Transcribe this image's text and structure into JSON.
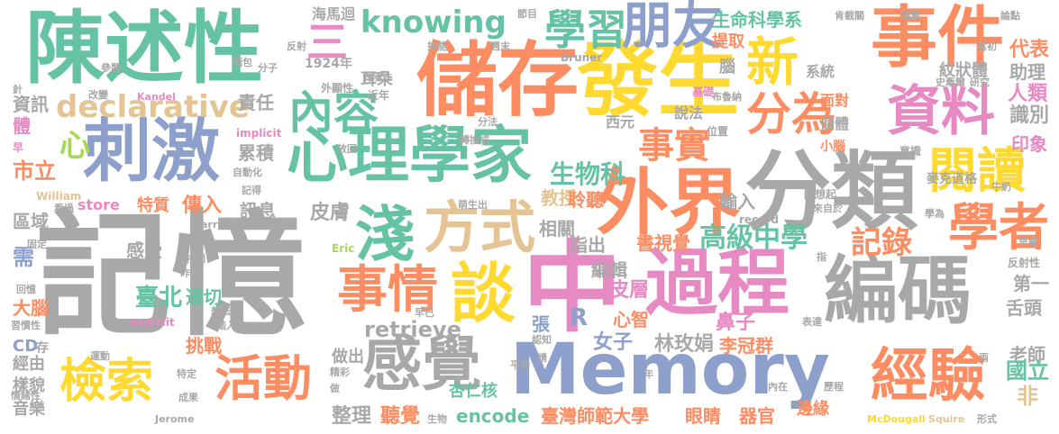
{
  "palette": {
    "gray": "#a8a8a8",
    "green": "#66c2a5",
    "orange": "#fc8d62",
    "blue": "#8da0cb",
    "pink": "#e78ac3",
    "lime": "#a6d854",
    "yellow": "#ffd92f",
    "tan": "#e5c494"
  },
  "words": [
    {
      "id": "jiyi",
      "text": "記憶",
      "color": "gray"
    },
    {
      "id": "chenshuxing",
      "text": "陳述性",
      "color": "green"
    },
    {
      "id": "chucun",
      "text": "儲存",
      "color": "orange"
    },
    {
      "id": "fasheng",
      "text": "發生",
      "color": "yellow"
    },
    {
      "id": "shijian",
      "text": "事件",
      "color": "orange"
    },
    {
      "id": "fenlei",
      "text": "分類",
      "color": "gray"
    },
    {
      "id": "memory",
      "text": "Memory",
      "color": "blue"
    },
    {
      "id": "zhong",
      "text": "中",
      "color": "pink"
    },
    {
      "id": "guocheng",
      "text": "過程",
      "color": "pink"
    },
    {
      "id": "bianma",
      "text": "編碼",
      "color": "gray"
    },
    {
      "id": "ciji",
      "text": "刺激",
      "color": "blue"
    },
    {
      "id": "xinlixuejia",
      "text": "心理學家",
      "color": "green"
    },
    {
      "id": "waijie",
      "text": "外界",
      "color": "orange"
    },
    {
      "id": "ziliao",
      "text": "資料",
      "color": "pink"
    },
    {
      "id": "yuedu",
      "text": "閱讀",
      "color": "yellow"
    },
    {
      "id": "xuezhe",
      "text": "學者",
      "color": "orange"
    },
    {
      "id": "jingyan",
      "text": "經驗",
      "color": "orange"
    },
    {
      "id": "ganjue",
      "text": "感覺",
      "color": "gray"
    },
    {
      "id": "jiansuo",
      "text": "檢索",
      "color": "yellow"
    },
    {
      "id": "huodong",
      "text": "活動",
      "color": "orange"
    },
    {
      "id": "qian",
      "text": "淺",
      "color": "green"
    },
    {
      "id": "fangshi",
      "text": "方式",
      "color": "tan"
    },
    {
      "id": "shiqing",
      "text": "事情",
      "color": "orange"
    },
    {
      "id": "tan",
      "text": "談",
      "color": "yellow"
    },
    {
      "id": "neirong",
      "text": "內容",
      "color": "green"
    },
    {
      "id": "declarative",
      "text": "declarative",
      "color": "tan"
    },
    {
      "id": "knowing",
      "text": "knowing",
      "color": "green"
    },
    {
      "id": "xuexi",
      "text": "學習",
      "color": "green"
    },
    {
      "id": "pengyou",
      "text": "朋友",
      "color": "blue"
    },
    {
      "id": "xin",
      "text": "新",
      "color": "yellow"
    },
    {
      "id": "fenwei",
      "text": "分為",
      "color": "orange"
    },
    {
      "id": "shishi",
      "text": "事實",
      "color": "orange"
    },
    {
      "id": "san",
      "text": "三",
      "color": "pink"
    },
    {
      "id": "xin2",
      "text": "心",
      "color": "lime"
    },
    {
      "id": "shengwuke",
      "text": "生物科",
      "color": "green"
    },
    {
      "id": "gaojizhongxue",
      "text": "高級中學",
      "color": "green"
    },
    {
      "id": "jilu",
      "text": "記錄",
      "color": "orange"
    },
    {
      "id": "shengmingkexuexi",
      "text": "生命科學系",
      "color": "green"
    },
    {
      "id": "taibei",
      "text": "臺北",
      "color": "green"
    },
    {
      "id": "shimingda",
      "text": "臺灣師範大學",
      "color": "orange"
    },
    {
      "id": "encode",
      "text": "encode",
      "color": "green"
    },
    {
      "id": "retrieve",
      "text": "retrieve",
      "color": "gray"
    },
    {
      "id": "store",
      "text": "store",
      "color": "pink"
    },
    {
      "id": "linmeijuan",
      "text": "林玫娟",
      "color": "gray"
    },
    {
      "id": "liguanqun",
      "text": "李冠群",
      "color": "orange"
    },
    {
      "id": "laoshi",
      "text": "老師",
      "color": "gray"
    },
    {
      "id": "guoli",
      "text": "國立",
      "color": "green"
    },
    {
      "id": "fei",
      "text": "非",
      "color": "tan"
    },
    {
      "id": "shetou",
      "text": "舌頭",
      "color": "gray"
    },
    {
      "id": "diyi",
      "text": "第一",
      "color": "gray"
    },
    {
      "id": "yinxiang",
      "text": "印象",
      "color": "pink"
    },
    {
      "id": "renlei",
      "text": "人類",
      "color": "pink"
    },
    {
      "id": "shibie",
      "text": "識別",
      "color": "gray"
    },
    {
      "id": "daibiao",
      "text": "代表",
      "color": "orange"
    },
    {
      "id": "zhuli",
      "text": "助理",
      "color": "gray"
    },
    {
      "id": "wenzhuangti",
      "text": "紋狀體",
      "color": "gray"
    },
    {
      "id": "maikedaoge",
      "text": "麥克道格",
      "color": "gray"
    },
    {
      "id": "R",
      "text": "R",
      "color": "blue"
    },
    {
      "id": "nvzi",
      "text": "女子",
      "color": "blue"
    },
    {
      "id": "xinzhi",
      "text": "心智",
      "color": "orange"
    },
    {
      "id": "pice",
      "text": "皮層",
      "color": "pink"
    },
    {
      "id": "bizi",
      "text": "鼻子",
      "color": "pink"
    },
    {
      "id": "bianji",
      "text": "編輯",
      "color": "gray"
    },
    {
      "id": "zhichu",
      "text": "指出",
      "color": "gray"
    },
    {
      "id": "shushijue",
      "text": "書視覺",
      "color": "orange"
    },
    {
      "id": "xingrenhe",
      "text": "杏仁核",
      "color": "green"
    },
    {
      "id": "yanjing",
      "text": "眼睛",
      "color": "orange"
    },
    {
      "id": "qiguan",
      "text": "器官",
      "color": "orange"
    },
    {
      "id": "zhengli",
      "text": "整理",
      "color": "gray"
    },
    {
      "id": "tingjue",
      "text": "聽覺",
      "color": "orange"
    },
    {
      "id": "zuochu",
      "text": "做出",
      "color": "gray"
    },
    {
      "id": "jingyou",
      "text": "經由",
      "color": "gray"
    },
    {
      "id": "yangmao",
      "text": "樣貌",
      "color": "gray"
    },
    {
      "id": "yinyue",
      "text": "音樂",
      "color": "gray"
    },
    {
      "id": "cd",
      "text": "CD",
      "color": "blue"
    },
    {
      "id": "danao",
      "text": "大腦",
      "color": "orange"
    },
    {
      "id": "xu",
      "text": "需",
      "color": "blue"
    },
    {
      "id": "quyu",
      "text": "區域",
      "color": "gray"
    },
    {
      "id": "shili",
      "text": "市立",
      "color": "orange"
    },
    {
      "id": "ti",
      "text": "體",
      "color": "pink"
    },
    {
      "id": "zixun",
      "text": "資訊",
      "color": "gray"
    },
    {
      "id": "zeren",
      "text": "責任",
      "color": "gray"
    },
    {
      "id": "leiji",
      "text": "累積",
      "color": "gray"
    },
    {
      "id": "ganshou",
      "text": "感受",
      "color": "gray"
    },
    {
      "id": "tezhi",
      "text": "特質",
      "color": "orange"
    },
    {
      "id": "chuanru",
      "text": "傳入",
      "color": "orange"
    },
    {
      "id": "xunxi",
      "text": "訊息",
      "color": "gray"
    },
    {
      "id": "pifu",
      "text": "皮膚",
      "color": "gray"
    },
    {
      "id": "shiqie",
      "text": "適切",
      "color": "green"
    },
    {
      "id": "tiaozhan",
      "text": "挑戰",
      "color": "orange"
    },
    {
      "id": "xiangguan",
      "text": "相關",
      "color": "gray"
    },
    {
      "id": "jiaoshou",
      "text": "教授",
      "color": "tan"
    },
    {
      "id": "lingting",
      "text": "聆聽",
      "color": "orange"
    },
    {
      "id": "shuru",
      "text": "輸入",
      "color": "gray"
    },
    {
      "id": "zhang",
      "text": "張",
      "color": "blue"
    },
    {
      "id": "erduo",
      "text": "耳朵",
      "color": "gray"
    },
    {
      "id": "haimahui",
      "text": "海馬迴",
      "color": "gray"
    },
    {
      "id": "nian1924",
      "text": "1924年",
      "color": "gray"
    },
    {
      "id": "xiyuan",
      "text": "西元",
      "color": "gray"
    },
    {
      "id": "tiqu",
      "text": "提取",
      "color": "orange"
    },
    {
      "id": "nao",
      "text": "腦",
      "color": "gray"
    },
    {
      "id": "xitong",
      "text": "系統",
      "color": "gray"
    },
    {
      "id": "miandui",
      "text": "面對",
      "color": "orange"
    },
    {
      "id": "getiti",
      "text": "個體",
      "color": "gray"
    },
    {
      "id": "xiaonao",
      "text": "小腦",
      "color": "orange"
    },
    {
      "id": "shuofa",
      "text": "說法",
      "color": "gray"
    },
    {
      "id": "jichu",
      "text": "基礎",
      "color": "pink"
    },
    {
      "id": "weizhi",
      "text": "位置",
      "color": "gray"
    },
    {
      "id": "yishi",
      "text": "意識",
      "color": "gray"
    },
    {
      "id": "huixiangqi",
      "text": "回想起",
      "color": "gray"
    },
    {
      "id": "jinnian",
      "text": "近年",
      "color": "gray"
    },
    {
      "id": "waixianxing",
      "text": "外顯性",
      "color": "gray"
    },
    {
      "id": "fenzi",
      "text": "分子",
      "color": "gray"
    },
    {
      "id": "jineng",
      "text": "技能",
      "color": "gray"
    },
    {
      "id": "zhoumo",
      "text": "週末",
      "color": "gray"
    },
    {
      "id": "bruner",
      "text": "Bruner",
      "color": "gray"
    },
    {
      "id": "fenfa",
      "text": "分法",
      "color": "gray"
    },
    {
      "id": "zhuanhuancheng",
      "text": "轉換成",
      "color": "gray"
    },
    {
      "id": "william",
      "text": "William",
      "color": "tan"
    },
    {
      "id": "jerome",
      "text": "Jerome",
      "color": "gray"
    },
    {
      "id": "explicit",
      "text": "explicit",
      "color": "pink"
    },
    {
      "id": "implicit",
      "text": "implicit",
      "color": "pink"
    },
    {
      "id": "kandel",
      "text": "Kandel",
      "color": "pink"
    },
    {
      "id": "larry",
      "text": "Larry",
      "color": "gray"
    },
    {
      "id": "eric",
      "text": "Eric",
      "color": "lime"
    },
    {
      "id": "record",
      "text": "record",
      "color": "gray"
    },
    {
      "id": "squire",
      "text": "Squire",
      "color": "tan"
    },
    {
      "id": "mcdougall",
      "text": "McDougall",
      "color": "yellow"
    },
    {
      "id": "xingshi",
      "text": "形式",
      "color": "gray"
    },
    {
      "id": "bianyuan",
      "text": "邊緣",
      "color": "orange"
    },
    {
      "id": "lishi",
      "text": "歷程",
      "color": "gray"
    },
    {
      "id": "neizai",
      "text": "內在",
      "color": "gray"
    },
    {
      "id": "renzhi",
      "text": "認知",
      "color": "gray"
    },
    {
      "id": "pingshi",
      "text": "平時",
      "color": "gray"
    },
    {
      "id": "jingcai",
      "text": "精彩",
      "color": "gray"
    },
    {
      "id": "zuo",
      "text": "做",
      "color": "gray"
    },
    {
      "id": "zao",
      "text": "早",
      "color": "pink"
    },
    {
      "id": "zaoyi",
      "text": "早已",
      "color": "gray"
    },
    {
      "id": "shengwu",
      "text": "生物",
      "color": "gray"
    },
    {
      "id": "chengguo",
      "text": "成果",
      "color": "gray"
    },
    {
      "id": "tediing",
      "text": "特定",
      "color": "gray"
    },
    {
      "id": "yundong",
      "text": "運動",
      "color": "gray"
    },
    {
      "id": "taru",
      "text": "踏入",
      "color": "gray"
    },
    {
      "id": "xiangfa",
      "text": "想法",
      "color": "gray"
    },
    {
      "id": "zuowan",
      "text": "昨晚",
      "color": "gray"
    },
    {
      "id": "tebie",
      "text": "特別",
      "color": "gray"
    },
    {
      "id": "jiamen",
      "text": "家門",
      "color": "gray"
    },
    {
      "id": "kanguo",
      "text": "看過",
      "color": "gray"
    },
    {
      "id": "jide",
      "text": "記得",
      "color": "gray"
    },
    {
      "id": "zidonghua",
      "text": "自動化",
      "color": "gray"
    },
    {
      "id": "fangru",
      "text": "放回",
      "color": "gray"
    },
    {
      "id": "gaiban",
      "text": "改變",
      "color": "gray"
    },
    {
      "id": "mianbao",
      "text": "麵包",
      "color": "gray"
    },
    {
      "id": "canyue",
      "text": "參閱",
      "color": "gray"
    },
    {
      "id": "fanshe",
      "text": "反射",
      "color": "gray"
    },
    {
      "id": "neiyinxing",
      "text": "內隱性",
      "color": "gray"
    },
    {
      "id": "jiedian",
      "text": "節目",
      "color": "gray"
    },
    {
      "id": "kending",
      "text": "肯截關",
      "color": "gray"
    },
    {
      "id": "dianying",
      "text": "電影",
      "color": "gray"
    },
    {
      "id": "lunjian",
      "text": "論點",
      "color": "gray"
    },
    {
      "id": "dangchu",
      "text": "當初",
      "color": "gray"
    },
    {
      "id": "shikeer",
      "text": "史牽爾",
      "color": "gray"
    },
    {
      "id": "yanjiu",
      "text": "研究",
      "color": "gray"
    },
    {
      "id": "buluna",
      "text": "布魯納",
      "color": "gray"
    },
    {
      "id": "niunai",
      "text": "牛奶",
      "color": "gray"
    },
    {
      "id": "laiziyu",
      "text": "來自於",
      "color": "gray"
    },
    {
      "id": "xuewei",
      "text": "學為",
      "color": "gray"
    },
    {
      "id": "zaoshu",
      "text": "早餐",
      "color": "gray"
    },
    {
      "id": "fanshexing",
      "text": "反射性",
      "color": "gray"
    },
    {
      "id": "zhi",
      "text": "指",
      "color": "gray"
    },
    {
      "id": "biaoda",
      "text": "表達",
      "color": "gray"
    },
    {
      "id": "qing",
      "text": "請",
      "color": "gray"
    },
    {
      "id": "liang",
      "text": "兩",
      "color": "gray"
    },
    {
      "id": "nian",
      "text": "年",
      "color": "gray"
    },
    {
      "id": "mengshengchu",
      "text": "萌生出",
      "color": "gray"
    },
    {
      "id": "guding",
      "text": "固定",
      "color": "gray"
    },
    {
      "id": "huiyi",
      "text": "回憶",
      "color": "gray"
    },
    {
      "id": "xiguanxing",
      "text": "習慣性",
      "color": "gray"
    },
    {
      "id": "qingxuxing",
      "text": "情緒性",
      "color": "gray"
    },
    {
      "id": "zhen",
      "text": "針",
      "color": "gray"
    },
    {
      "id": "cun",
      "text": "存",
      "color": "gray"
    }
  ]
}
